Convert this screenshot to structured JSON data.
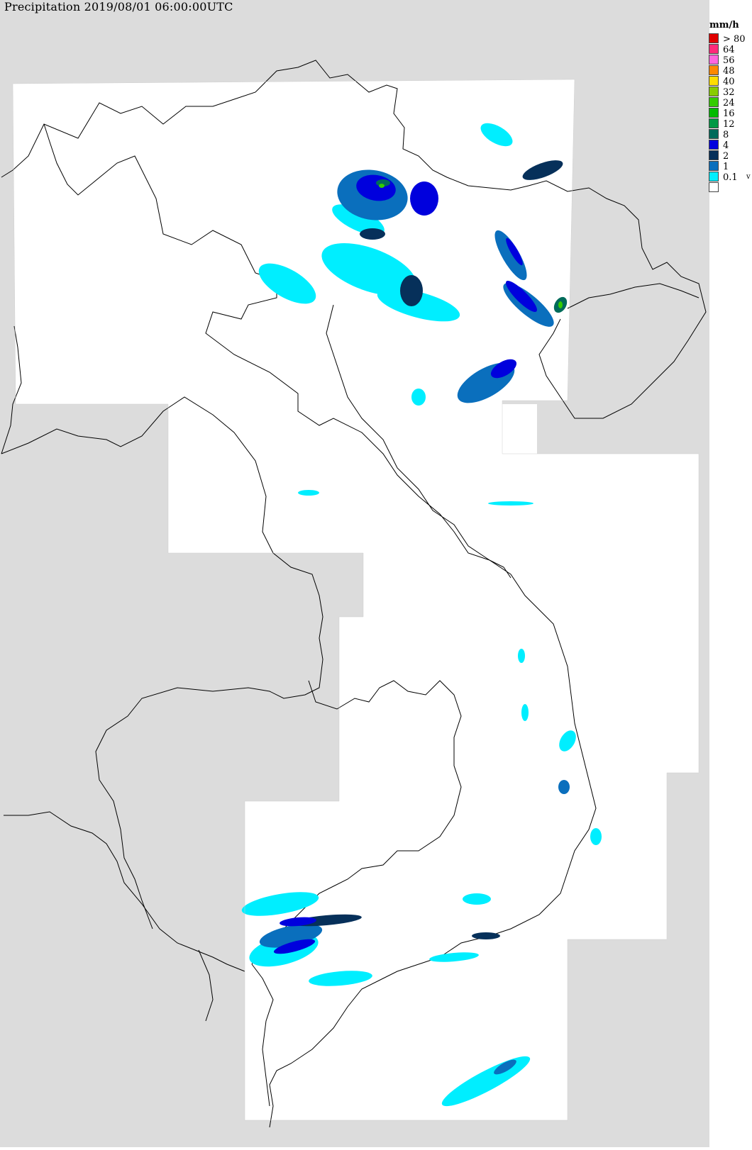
{
  "map": {
    "title": "Precipitation 2019/08/01 06:00:00UTC",
    "background_color": "#dcdcdc",
    "coverage_color": "#ffffff",
    "border_color": "#000000"
  },
  "legend": {
    "unit": "mm/h",
    "arrow": "v",
    "levels": [
      {
        "label": "> 80",
        "color": "#e00000"
      },
      {
        "label": "64",
        "color": "#ff2a7a"
      },
      {
        "label": "56",
        "color": "#ff66dd"
      },
      {
        "label": "48",
        "color": "#ff8800"
      },
      {
        "label": "40",
        "color": "#ffdd00"
      },
      {
        "label": "32",
        "color": "#88cc00"
      },
      {
        "label": "24",
        "color": "#33cc00"
      },
      {
        "label": "16",
        "color": "#00bb00"
      },
      {
        "label": "12",
        "color": "#009944"
      },
      {
        "label": "8",
        "color": "#006b5a"
      },
      {
        "label": "4",
        "color": "#0000dd"
      },
      {
        "label": "2",
        "color": "#06305a"
      },
      {
        "label": "1",
        "color": "#0a6fbd"
      },
      {
        "label": "0.1",
        "color": "#00eeff"
      },
      {
        "label": "",
        "color": "#ffffff"
      }
    ]
  }
}
